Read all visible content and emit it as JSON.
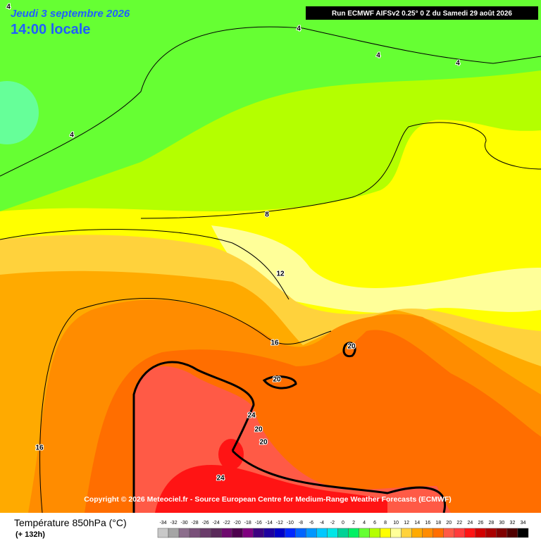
{
  "header": {
    "date": "Jeudi 3 septembre 2026",
    "time": "14:00 locale",
    "run": "Run ECMWF AIFSv2 0.25° 0 Z du Samedi 29 août 2026"
  },
  "contour_labels": [
    "4",
    "4",
    "4",
    "4",
    "4",
    "8",
    "12",
    "16",
    "20",
    "20",
    "24",
    "20",
    "20",
    "16",
    "24"
  ],
  "copyright": "Copyright © 2026 Meteociel.fr - Source European Centre for Medium-Range Weather Forecasts (ECMWF)",
  "legend": {
    "title": "Température 850hPa (°C)",
    "lead": "(+ 132h)",
    "labels": [
      "-34",
      "-32",
      "-30",
      "-28",
      "-26",
      "-24",
      "-22",
      "-20",
      "-18",
      "-16",
      "-14",
      "-12",
      "-10",
      "-8",
      "-6",
      "-4",
      "-2",
      "0",
      "2",
      "4",
      "6",
      "8",
      "10",
      "12",
      "14",
      "16",
      "18",
      "20",
      "22",
      "24",
      "26",
      "28",
      "30",
      "32",
      "34"
    ],
    "colors": [
      "#c8c8c8",
      "#a5a5a5",
      "#8c6e8c",
      "#7a507a",
      "#6a3c6a",
      "#5a2a5a",
      "#6e0a6e",
      "#4e004e",
      "#800080",
      "#3c0080",
      "#1e00a0",
      "#0000c8",
      "#0028ff",
      "#0064ff",
      "#0096ff",
      "#00c8ff",
      "#00e6e6",
      "#00d296",
      "#00f064",
      "#66ff33",
      "#b4ff00",
      "#ffff00",
      "#ffff99",
      "#ffd23c",
      "#ffaa00",
      "#ff8c00",
      "#ff6e00",
      "#ff5a46",
      "#ff3c3c",
      "#ff1414",
      "#d20000",
      "#aa0000",
      "#800000",
      "#500000",
      "#000000"
    ]
  }
}
